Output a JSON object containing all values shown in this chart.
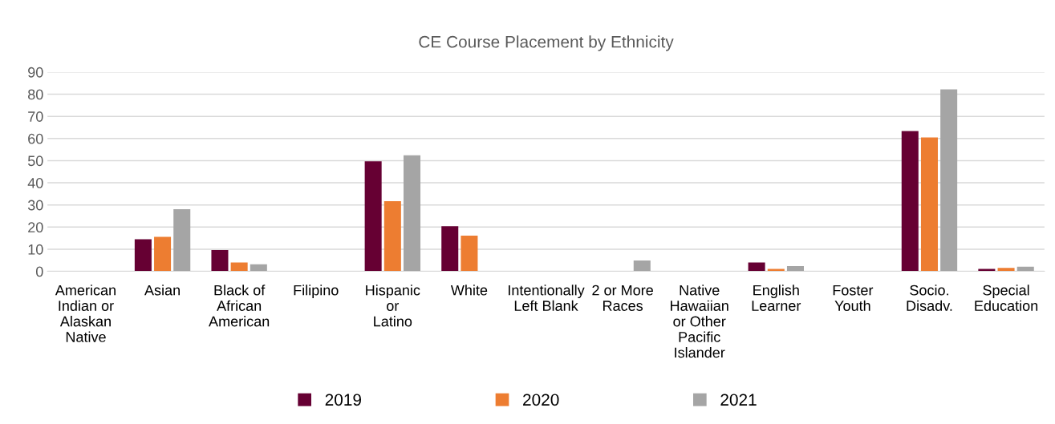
{
  "chart_data": {
    "type": "bar",
    "title": "CE Course Placement by Ethnicity",
    "categories": [
      "American\nIndian or\nAlaskan\nNative",
      "Asian",
      "Black of\nAfrican\nAmerican",
      "Filipino",
      "Hispanic\nor\nLatino",
      "White",
      "Intentionally\nLeft Blank",
      "2 or More\nRaces",
      "Native\nHawaiian\nor Other\nPacific\nIslander",
      "English\nLearner",
      "Foster\nYouth",
      "Socio.\nDisadv.",
      "Special\nEducation"
    ],
    "series": [
      {
        "name": "2019",
        "color": "#660033",
        "values": [
          0,
          14.5,
          9.6,
          0,
          49.7,
          20.4,
          0,
          0,
          0,
          4,
          0,
          63.4,
          1.1
        ]
      },
      {
        "name": "2020",
        "color": "#ed7d31",
        "values": [
          0,
          15.6,
          4,
          0,
          31.7,
          16.1,
          0,
          0,
          0,
          1.1,
          0,
          60.5,
          1.6
        ]
      },
      {
        "name": "2021",
        "color": "#a5a5a5",
        "values": [
          0,
          28.1,
          3.2,
          0,
          52.4,
          0,
          0,
          4.9,
          0,
          2.4,
          0,
          82.2,
          2.1
        ]
      }
    ],
    "ylim": [
      0,
      90
    ],
    "yticks": [
      0,
      10,
      20,
      30,
      40,
      50,
      60,
      70,
      80,
      90
    ],
    "grid": "y",
    "legend": "bottom"
  }
}
